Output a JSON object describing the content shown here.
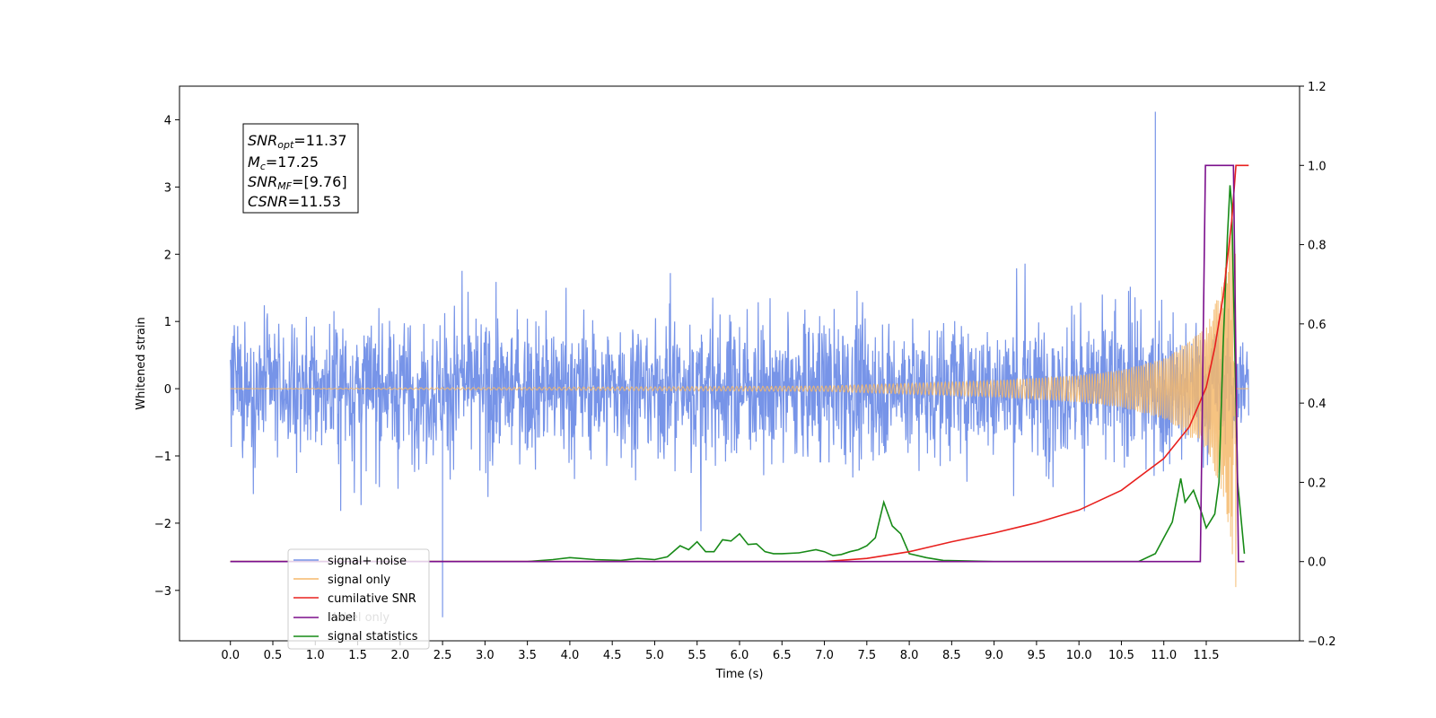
{
  "chart_data": {
    "type": "line",
    "title": "",
    "xlabel": "Time (s)",
    "ylabel": "Whitened strain",
    "y2label": "",
    "xlim": [
      -0.6,
      12.6
    ],
    "ylim": [
      -3.75,
      4.5
    ],
    "y2lim": [
      -0.2,
      1.2
    ],
    "xticks": [
      0.0,
      0.5,
      1.0,
      1.5,
      2.0,
      2.5,
      3.0,
      3.5,
      4.0,
      4.5,
      5.0,
      5.5,
      6.0,
      6.5,
      7.0,
      7.5,
      8.0,
      8.5,
      9.0,
      9.5,
      10.0,
      10.5,
      11.0,
      11.5
    ],
    "xtick_labels": [
      "0.0",
      "0.5",
      "1.0",
      "1.5",
      "2.0",
      "2.5",
      "3.0",
      "3.5",
      "4.0",
      "4.5",
      "5.0",
      "5.5",
      "6.0",
      "6.5",
      "7.0",
      "7.5",
      "8.0",
      "8.5",
      "9.0",
      "9.5",
      "10.0",
      "10.5",
      "11.0",
      "11.5"
    ],
    "yticks": [
      -3,
      -2,
      -1,
      0,
      1,
      2,
      3,
      4
    ],
    "ytick_labels": [
      "−3",
      "−2",
      "−1",
      "0",
      "1",
      "2",
      "3",
      "4"
    ],
    "y2ticks": [
      -0.2,
      0.0,
      0.2,
      0.4,
      0.6,
      0.8,
      1.0,
      1.2
    ],
    "y2tick_labels": [
      "−0.2",
      "0.0",
      "0.2",
      "0.4",
      "0.6",
      "0.8",
      "1.0",
      "1.2"
    ],
    "grid": false,
    "legend_position": "lower-left",
    "annotation_lines": [
      {
        "base": "SNR",
        "sub": "opt",
        "rest": "=11.37"
      },
      {
        "base": "M",
        "sub": "c",
        "rest": "=17.25"
      },
      {
        "base": "SNR",
        "sub": "MF",
        "rest": "=[9.76]"
      },
      {
        "base": "CSNR",
        "sub": "",
        "rest": "=11.53"
      }
    ],
    "series": [
      {
        "name": "signal+ noise",
        "color": "#7794e8",
        "axis": "left",
        "kind": "noise",
        "x_range": [
          0.0,
          12.0
        ],
        "typical_envelope": [
          -2.0,
          2.0
        ],
        "max_value": 4.12,
        "max_at": 10.9,
        "min_value": -3.4,
        "min_at": 2.5
      },
      {
        "name": "signal only",
        "color": "#f5b86b",
        "axis": "left",
        "kind": "chirp",
        "x_range": [
          0.0,
          12.0
        ],
        "coalescence_time": 11.85,
        "amplitude_at": [
          [
            0.0,
            0.0
          ],
          [
            7.0,
            0.04
          ],
          [
            9.0,
            0.12
          ],
          [
            10.0,
            0.2
          ],
          [
            10.5,
            0.28
          ],
          [
            11.0,
            0.45
          ],
          [
            11.5,
            0.9
          ],
          [
            11.7,
            1.6
          ],
          [
            11.85,
            3.0
          ]
        ]
      },
      {
        "name": "cumilative SNR",
        "color": "#e8201e",
        "axis": "right",
        "x": [
          0.0,
          7.0,
          7.5,
          8.0,
          8.5,
          9.0,
          9.5,
          10.0,
          10.5,
          11.0,
          11.3,
          11.5,
          11.6,
          11.7,
          11.8,
          11.85,
          11.9,
          12.0
        ],
        "values": [
          0.0,
          0.0,
          0.008,
          0.025,
          0.05,
          0.072,
          0.098,
          0.13,
          0.18,
          0.26,
          0.34,
          0.44,
          0.54,
          0.67,
          0.86,
          1.0,
          1.0,
          1.0
        ]
      },
      {
        "name": "label",
        "color": "#7b0f8c",
        "axis": "right",
        "x": [
          0.0,
          11.43,
          11.49,
          11.82,
          11.88,
          11.95
        ],
        "values": [
          0.0,
          0.0,
          1.0,
          1.0,
          0.0,
          0.0
        ]
      },
      {
        "name": "label only",
        "color": "#cccccc",
        "axis": "right",
        "hidden": true,
        "x": [],
        "values": []
      },
      {
        "name": "signal statistics",
        "color": "#178a17",
        "axis": "right",
        "x": [
          0.0,
          3.5,
          3.8,
          4.0,
          4.3,
          4.6,
          4.8,
          5.0,
          5.15,
          5.3,
          5.4,
          5.5,
          5.6,
          5.7,
          5.8,
          5.9,
          6.0,
          6.1,
          6.2,
          6.3,
          6.4,
          6.5,
          6.7,
          6.9,
          7.0,
          7.1,
          7.2,
          7.3,
          7.4,
          7.5,
          7.6,
          7.7,
          7.8,
          7.9,
          8.0,
          8.2,
          8.4,
          9.0,
          10.7,
          10.9,
          11.0,
          11.1,
          11.2,
          11.25,
          11.35,
          11.45,
          11.5,
          11.6,
          11.65,
          11.7,
          11.75,
          11.78,
          11.8,
          11.83,
          11.87,
          11.95
        ],
        "values": [
          0.0,
          0.0,
          0.005,
          0.01,
          0.005,
          0.003,
          0.008,
          0.005,
          0.012,
          0.04,
          0.03,
          0.05,
          0.025,
          0.025,
          0.055,
          0.052,
          0.07,
          0.043,
          0.045,
          0.025,
          0.02,
          0.02,
          0.022,
          0.03,
          0.025,
          0.015,
          0.018,
          0.025,
          0.03,
          0.04,
          0.06,
          0.15,
          0.09,
          0.07,
          0.02,
          0.01,
          0.003,
          0.0,
          0.0,
          0.02,
          0.06,
          0.1,
          0.21,
          0.15,
          0.18,
          0.12,
          0.085,
          0.12,
          0.2,
          0.55,
          0.82,
          0.95,
          0.9,
          0.6,
          0.2,
          0.02
        ]
      }
    ]
  }
}
